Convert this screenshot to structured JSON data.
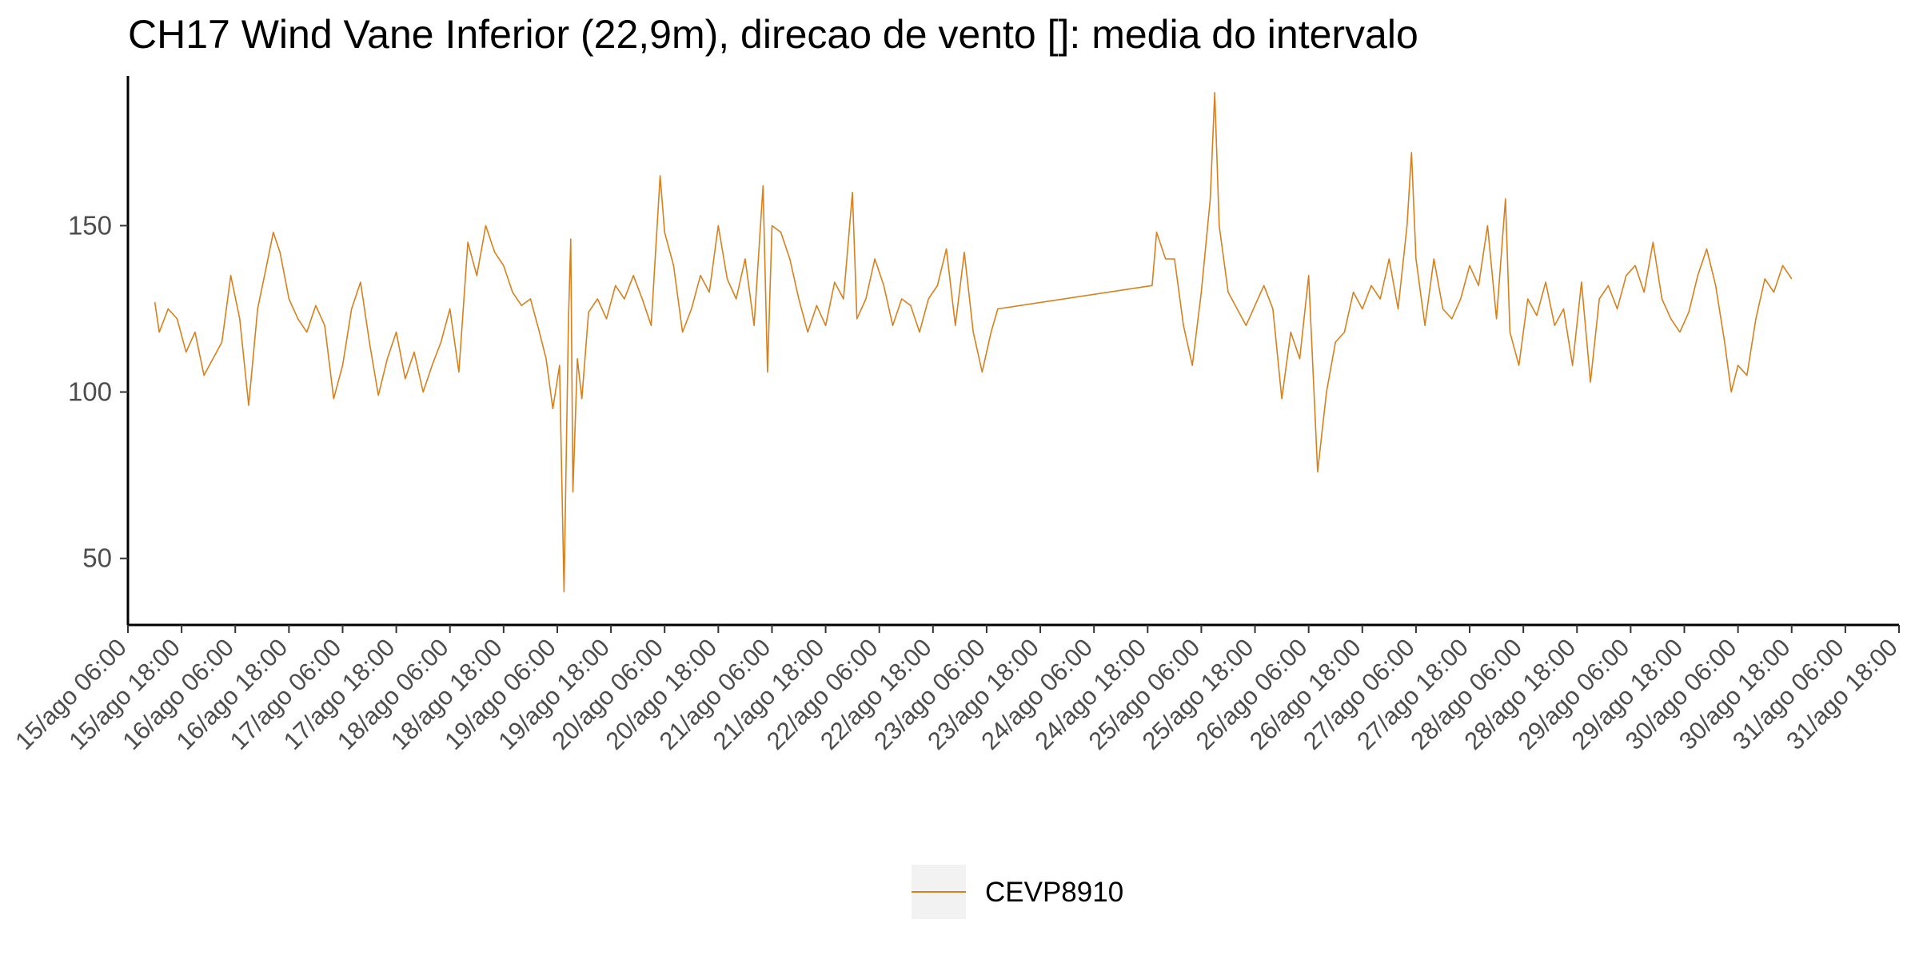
{
  "chart_data": {
    "type": "line",
    "title": "CH17 Wind Vane Inferior (22,9m), direcao de vento []: media do intervalo",
    "xlabel": "",
    "ylabel": "",
    "x_axis": {
      "type": "time",
      "start": "2000-08-15T06:00",
      "end": "2000-08-31T18:00",
      "tick_labels": [
        "15/ago 06:00",
        "15/ago 18:00",
        "16/ago 06:00",
        "16/ago 18:00",
        "17/ago 06:00",
        "17/ago 18:00",
        "18/ago 06:00",
        "18/ago 18:00",
        "19/ago 06:00",
        "19/ago 18:00",
        "20/ago 06:00",
        "20/ago 18:00",
        "21/ago 06:00",
        "21/ago 18:00",
        "22/ago 06:00",
        "22/ago 18:00",
        "23/ago 06:00",
        "23/ago 18:00",
        "24/ago 06:00",
        "24/ago 18:00",
        "25/ago 06:00",
        "25/ago 18:00",
        "26/ago 06:00",
        "26/ago 18:00",
        "27/ago 06:00",
        "27/ago 18:00",
        "28/ago 06:00",
        "28/ago 18:00",
        "29/ago 06:00",
        "29/ago 18:00",
        "30/ago 06:00",
        "30/ago 18:00",
        "31/ago 06:00",
        "31/ago 18:00"
      ]
    },
    "ylim": [
      30,
      195
    ],
    "yticks": [
      50,
      100,
      150
    ],
    "grid": false,
    "legend_position": "bottom",
    "colors": {
      "series": "#D8801C",
      "legend_key_bg": "#F2F2F2"
    },
    "series": [
      {
        "name": "CEVP8910",
        "points": [
          [
            "2000-08-15T12:00",
            127
          ],
          [
            "2000-08-15T13:00",
            118
          ],
          [
            "2000-08-15T15:00",
            125
          ],
          [
            "2000-08-15T17:00",
            122
          ],
          [
            "2000-08-15T19:00",
            112
          ],
          [
            "2000-08-15T21:00",
            118
          ],
          [
            "2000-08-15T23:00",
            105
          ],
          [
            "2000-08-16T01:00",
            110
          ],
          [
            "2000-08-16T03:00",
            115
          ],
          [
            "2000-08-16T05:00",
            135
          ],
          [
            "2000-08-16T07:00",
            122
          ],
          [
            "2000-08-16T09:00",
            96
          ],
          [
            "2000-08-16T11:00",
            125
          ],
          [
            "2000-08-16T13:00",
            138
          ],
          [
            "2000-08-16T14:30",
            148
          ],
          [
            "2000-08-16T16:00",
            142
          ],
          [
            "2000-08-16T18:00",
            128
          ],
          [
            "2000-08-16T20:00",
            122
          ],
          [
            "2000-08-16T22:00",
            118
          ],
          [
            "2000-08-17T00:00",
            126
          ],
          [
            "2000-08-17T02:00",
            120
          ],
          [
            "2000-08-17T04:00",
            98
          ],
          [
            "2000-08-17T06:00",
            108
          ],
          [
            "2000-08-17T08:00",
            125
          ],
          [
            "2000-08-17T10:00",
            133
          ],
          [
            "2000-08-17T12:00",
            115
          ],
          [
            "2000-08-17T14:00",
            99
          ],
          [
            "2000-08-17T16:00",
            110
          ],
          [
            "2000-08-17T18:00",
            118
          ],
          [
            "2000-08-17T20:00",
            104
          ],
          [
            "2000-08-17T22:00",
            112
          ],
          [
            "2000-08-18T00:00",
            100
          ],
          [
            "2000-08-18T02:00",
            108
          ],
          [
            "2000-08-18T04:00",
            115
          ],
          [
            "2000-08-18T06:00",
            125
          ],
          [
            "2000-08-18T08:00",
            106
          ],
          [
            "2000-08-18T10:00",
            145
          ],
          [
            "2000-08-18T12:00",
            135
          ],
          [
            "2000-08-18T14:00",
            150
          ],
          [
            "2000-08-18T16:00",
            142
          ],
          [
            "2000-08-18T18:00",
            138
          ],
          [
            "2000-08-18T20:00",
            130
          ],
          [
            "2000-08-18T22:00",
            126
          ],
          [
            "2000-08-19T00:00",
            128
          ],
          [
            "2000-08-19T02:00",
            118
          ],
          [
            "2000-08-19T03:30",
            110
          ],
          [
            "2000-08-19T05:00",
            95
          ],
          [
            "2000-08-19T06:30",
            108
          ],
          [
            "2000-08-19T07:30",
            40
          ],
          [
            "2000-08-19T08:30",
            122
          ],
          [
            "2000-08-19T09:00",
            146
          ],
          [
            "2000-08-19T09:30",
            70
          ],
          [
            "2000-08-19T10:30",
            110
          ],
          [
            "2000-08-19T11:30",
            98
          ],
          [
            "2000-08-19T13:00",
            124
          ],
          [
            "2000-08-19T15:00",
            128
          ],
          [
            "2000-08-19T17:00",
            122
          ],
          [
            "2000-08-19T19:00",
            132
          ],
          [
            "2000-08-19T21:00",
            128
          ],
          [
            "2000-08-19T23:00",
            135
          ],
          [
            "2000-08-20T01:00",
            128
          ],
          [
            "2000-08-20T03:00",
            120
          ],
          [
            "2000-08-20T05:00",
            165
          ],
          [
            "2000-08-20T06:00",
            148
          ],
          [
            "2000-08-20T08:00",
            138
          ],
          [
            "2000-08-20T10:00",
            118
          ],
          [
            "2000-08-20T12:00",
            125
          ],
          [
            "2000-08-20T14:00",
            135
          ],
          [
            "2000-08-20T16:00",
            130
          ],
          [
            "2000-08-20T18:00",
            150
          ],
          [
            "2000-08-20T20:00",
            134
          ],
          [
            "2000-08-20T22:00",
            128
          ],
          [
            "2000-08-21T00:00",
            140
          ],
          [
            "2000-08-21T02:00",
            120
          ],
          [
            "2000-08-21T04:00",
            162
          ],
          [
            "2000-08-21T05:00",
            106
          ],
          [
            "2000-08-21T06:00",
            150
          ],
          [
            "2000-08-21T08:00",
            148
          ],
          [
            "2000-08-21T10:00",
            140
          ],
          [
            "2000-08-21T12:00",
            128
          ],
          [
            "2000-08-21T14:00",
            118
          ],
          [
            "2000-08-21T16:00",
            126
          ],
          [
            "2000-08-21T18:00",
            120
          ],
          [
            "2000-08-21T20:00",
            133
          ],
          [
            "2000-08-21T22:00",
            128
          ],
          [
            "2000-08-22T00:00",
            160
          ],
          [
            "2000-08-22T01:00",
            122
          ],
          [
            "2000-08-22T03:00",
            128
          ],
          [
            "2000-08-22T05:00",
            140
          ],
          [
            "2000-08-22T07:00",
            132
          ],
          [
            "2000-08-22T09:00",
            120
          ],
          [
            "2000-08-22T11:00",
            128
          ],
          [
            "2000-08-22T13:00",
            126
          ],
          [
            "2000-08-22T15:00",
            118
          ],
          [
            "2000-08-22T17:00",
            128
          ],
          [
            "2000-08-22T19:00",
            132
          ],
          [
            "2000-08-22T21:00",
            143
          ],
          [
            "2000-08-22T23:00",
            120
          ],
          [
            "2000-08-23T01:00",
            142
          ],
          [
            "2000-08-23T03:00",
            118
          ],
          [
            "2000-08-23T05:00",
            106
          ],
          [
            "2000-08-23T07:00",
            118
          ],
          [
            "2000-08-23T08:30",
            125
          ],
          [
            "2000-08-24T19:00",
            132
          ],
          [
            "2000-08-24T20:00",
            148
          ],
          [
            "2000-08-24T22:00",
            140
          ],
          [
            "2000-08-25T00:00",
            140
          ],
          [
            "2000-08-25T02:00",
            120
          ],
          [
            "2000-08-25T04:00",
            108
          ],
          [
            "2000-08-25T06:00",
            130
          ],
          [
            "2000-08-25T08:00",
            158
          ],
          [
            "2000-08-25T09:00",
            190
          ],
          [
            "2000-08-25T10:00",
            150
          ],
          [
            "2000-08-25T12:00",
            130
          ],
          [
            "2000-08-25T14:00",
            125
          ],
          [
            "2000-08-25T16:00",
            120
          ],
          [
            "2000-08-25T18:00",
            126
          ],
          [
            "2000-08-25T20:00",
            132
          ],
          [
            "2000-08-25T22:00",
            125
          ],
          [
            "2000-08-26T00:00",
            98
          ],
          [
            "2000-08-26T02:00",
            118
          ],
          [
            "2000-08-26T04:00",
            110
          ],
          [
            "2000-08-26T06:00",
            135
          ],
          [
            "2000-08-26T08:00",
            76
          ],
          [
            "2000-08-26T09:00",
            88
          ],
          [
            "2000-08-26T10:00",
            100
          ],
          [
            "2000-08-26T12:00",
            115
          ],
          [
            "2000-08-26T14:00",
            118
          ],
          [
            "2000-08-26T16:00",
            130
          ],
          [
            "2000-08-26T18:00",
            125
          ],
          [
            "2000-08-26T20:00",
            132
          ],
          [
            "2000-08-26T22:00",
            128
          ],
          [
            "2000-08-27T00:00",
            140
          ],
          [
            "2000-08-27T02:00",
            125
          ],
          [
            "2000-08-27T04:00",
            150
          ],
          [
            "2000-08-27T05:00",
            172
          ],
          [
            "2000-08-27T06:00",
            140
          ],
          [
            "2000-08-27T08:00",
            120
          ],
          [
            "2000-08-27T10:00",
            140
          ],
          [
            "2000-08-27T12:00",
            125
          ],
          [
            "2000-08-27T14:00",
            122
          ],
          [
            "2000-08-27T16:00",
            128
          ],
          [
            "2000-08-27T18:00",
            138
          ],
          [
            "2000-08-27T20:00",
            132
          ],
          [
            "2000-08-27T22:00",
            150
          ],
          [
            "2000-08-28T00:00",
            122
          ],
          [
            "2000-08-28T02:00",
            158
          ],
          [
            "2000-08-28T03:00",
            118
          ],
          [
            "2000-08-28T05:00",
            108
          ],
          [
            "2000-08-28T07:00",
            128
          ],
          [
            "2000-08-28T09:00",
            123
          ],
          [
            "2000-08-28T11:00",
            133
          ],
          [
            "2000-08-28T13:00",
            120
          ],
          [
            "2000-08-28T15:00",
            125
          ],
          [
            "2000-08-28T17:00",
            108
          ],
          [
            "2000-08-28T19:00",
            133
          ],
          [
            "2000-08-28T21:00",
            103
          ],
          [
            "2000-08-28T23:00",
            128
          ],
          [
            "2000-08-29T01:00",
            132
          ],
          [
            "2000-08-29T03:00",
            125
          ],
          [
            "2000-08-29T05:00",
            135
          ],
          [
            "2000-08-29T07:00",
            138
          ],
          [
            "2000-08-29T09:00",
            130
          ],
          [
            "2000-08-29T11:00",
            145
          ],
          [
            "2000-08-29T13:00",
            128
          ],
          [
            "2000-08-29T15:00",
            122
          ],
          [
            "2000-08-29T17:00",
            118
          ],
          [
            "2000-08-29T19:00",
            124
          ],
          [
            "2000-08-29T21:00",
            135
          ],
          [
            "2000-08-29T23:00",
            143
          ],
          [
            "2000-08-30T01:00",
            132
          ],
          [
            "2000-08-30T03:00",
            115
          ],
          [
            "2000-08-30T04:30",
            100
          ],
          [
            "2000-08-30T06:00",
            108
          ],
          [
            "2000-08-30T08:00",
            105
          ],
          [
            "2000-08-30T10:00",
            122
          ],
          [
            "2000-08-30T12:00",
            134
          ],
          [
            "2000-08-30T14:00",
            130
          ],
          [
            "2000-08-30T16:00",
            138
          ],
          [
            "2000-08-30T18:00",
            134
          ]
        ]
      }
    ]
  }
}
